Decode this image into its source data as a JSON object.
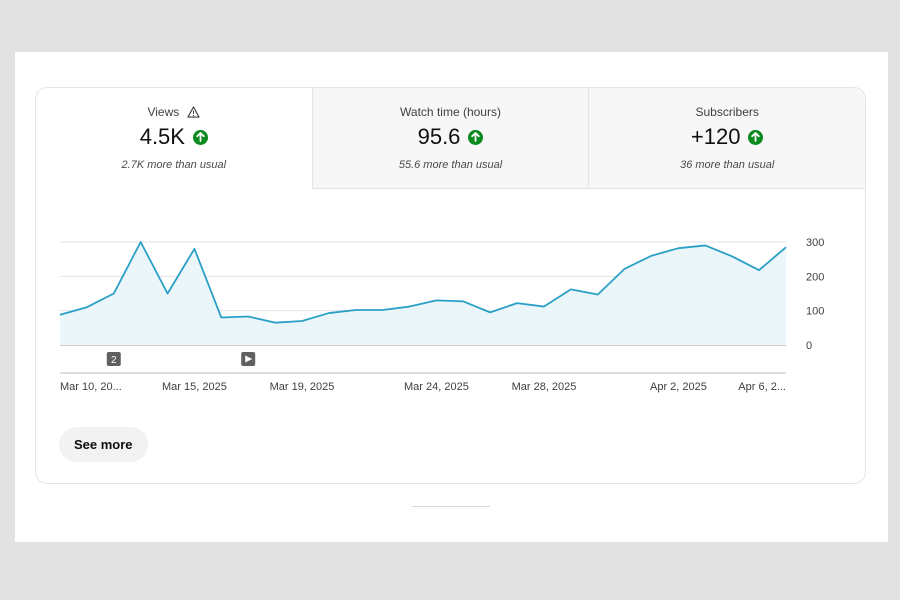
{
  "metrics": [
    {
      "label": "Views",
      "value": "4.5K",
      "note": "2.7K more than usual",
      "warning_icon": "warning-triangle-icon",
      "trend_icon": "arrow-up-circle-icon"
    },
    {
      "label": "Watch time (hours)",
      "value": "95.6",
      "note": "55.6 more than usual",
      "trend_icon": "arrow-up-circle-icon"
    },
    {
      "label": "Subscribers",
      "value": "+120",
      "note": "36 more than usual",
      "trend_icon": "arrow-up-circle-icon"
    }
  ],
  "colors": {
    "line": "#2aa0c6",
    "fill": "#eaf6f9",
    "trend_up": "#0b8a1f"
  },
  "chart_data": {
    "type": "area",
    "x": [
      "Mar 10",
      "Mar 11",
      "Mar 12",
      "Mar 13",
      "Mar 14",
      "Mar 15",
      "Mar 16",
      "Mar 17",
      "Mar 18",
      "Mar 19",
      "Mar 20",
      "Mar 21",
      "Mar 22",
      "Mar 23",
      "Mar 24",
      "Mar 25",
      "Mar 26",
      "Mar 27",
      "Mar 28",
      "Mar 29",
      "Mar 30",
      "Mar 31",
      "Apr 1",
      "Apr 2",
      "Apr 3",
      "Apr 4",
      "Apr 5",
      "Apr 6"
    ],
    "values": [
      88,
      110,
      150,
      300,
      150,
      280,
      80,
      83,
      65,
      70,
      93,
      102,
      102,
      112,
      130,
      127,
      95,
      122,
      112,
      162,
      147,
      222,
      260,
      282,
      290,
      258,
      218,
      285
    ],
    "ylim": [
      0,
      300
    ],
    "yticks": [
      "300",
      "200",
      "100",
      "0"
    ],
    "ytick_values": [
      300,
      200,
      100,
      0
    ],
    "xtick_labels": [
      {
        "label": "Mar 10, 20...",
        "index": 0
      },
      {
        "label": "Mar 15, 2025",
        "index": 5
      },
      {
        "label": "Mar 19, 2025",
        "index": 9
      },
      {
        "label": "Mar 24, 2025",
        "index": 14
      },
      {
        "label": "Mar 28, 2025",
        "index": 18
      },
      {
        "label": "Apr 2, 2025",
        "index": 23
      },
      {
        "label": "Apr 6, 2...",
        "index": 27
      }
    ],
    "markers": [
      {
        "type": "count-badge",
        "text": "2",
        "index": 2
      },
      {
        "type": "play-icon",
        "text": "",
        "index": 7
      }
    ],
    "grid": true
  },
  "see_more_label": "See more"
}
